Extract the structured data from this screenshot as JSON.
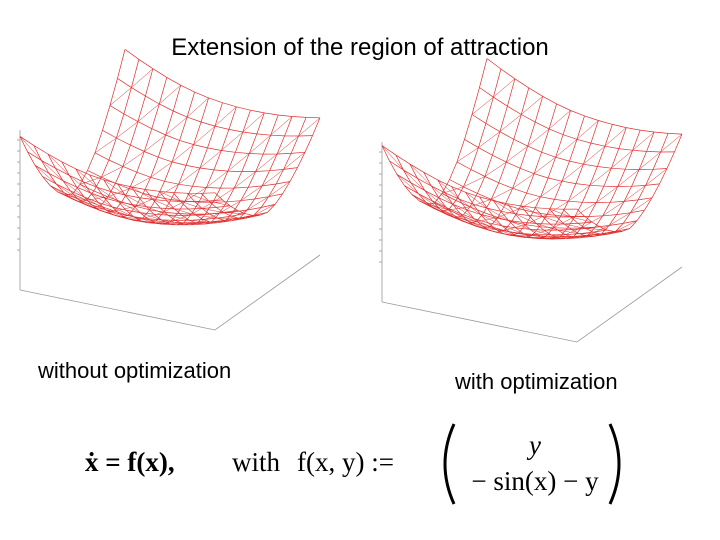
{
  "title": "Extension of the region of attraction",
  "captions": [
    "without optimization",
    "with optimization"
  ],
  "equation": {
    "lhs": "ẋ = f(x),",
    "with": "with",
    "def": "f(x, y) :=",
    "top": "y",
    "bottom": "− sin(x) − y"
  }
}
